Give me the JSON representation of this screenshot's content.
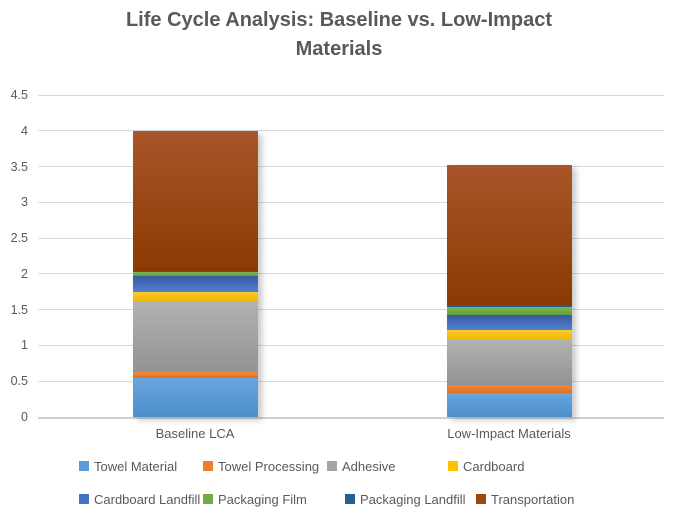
{
  "chart_data": {
    "type": "bar",
    "stacked": true,
    "title": "Life Cycle Analysis: Baseline vs. Low-Impact Materials",
    "title_lines": [
      "Life Cycle Analysis: Baseline vs. Low-Impact",
      "Materials"
    ],
    "categories": [
      "Baseline LCA",
      "Low-Impact Materials"
    ],
    "series": [
      {
        "name": "Towel Material",
        "color": "#5B9BD5",
        "gradient": [
          "#6AA6DE",
          "#4C8DCB"
        ],
        "values": [
          0.55,
          0.33
        ]
      },
      {
        "name": "Towel Processing",
        "color": "#ED7D31",
        "gradient": [
          "#F08A42",
          "#E06F1F"
        ],
        "values": [
          0.08,
          0.11
        ]
      },
      {
        "name": "Adhesive",
        "color": "#A5A5A5",
        "gradient": [
          "#B2B2B2",
          "#929292"
        ],
        "values": [
          0.97,
          0.63
        ]
      },
      {
        "name": "Cardboard",
        "color": "#FFC000",
        "gradient": [
          "#FFCA28",
          "#EEB400"
        ],
        "values": [
          0.15,
          0.14
        ]
      },
      {
        "name": "Cardboard Landfill",
        "color": "#4472C4",
        "gradient": [
          "#375A9F",
          "#5181D5"
        ],
        "values": [
          0.22,
          0.21
        ]
      },
      {
        "name": "Packaging Film",
        "color": "#70AD47",
        "gradient": [
          "#7BB754",
          "#61A039"
        ],
        "values": [
          0.05,
          0.12
        ]
      },
      {
        "name": "Packaging Landfill",
        "color": "#255E91",
        "gradient": [
          "#255E91",
          "#255E91"
        ],
        "values": [
          0.02,
          0.02
        ]
      },
      {
        "name": "Transportation",
        "color": "#9E480E",
        "gradient": [
          "#A8562A",
          "#8C3A02"
        ],
        "values": [
          1.96,
          1.96
        ]
      }
    ],
    "totals": [
      4.0,
      3.52
    ],
    "ylim": [
      0,
      4.5
    ],
    "ytick_step": 0.5,
    "yticks": [
      "0",
      "0.5",
      "1",
      "1.5",
      "2",
      "2.5",
      "3",
      "3.5",
      "4",
      "4.5"
    ],
    "grid": true,
    "legend_position": "bottom",
    "legend_rows": [
      [
        "Towel Material",
        "Towel Processing",
        "Adhesive",
        "Cardboard"
      ],
      [
        "Cardboard Landfill",
        "Packaging Film",
        "Packaging Landfill",
        "Transportation"
      ]
    ]
  },
  "colors": {
    "title_text": "#595959",
    "axis_text": "#595959",
    "gridline": "#D9D9D9",
    "axis_line": "#D0D0D0",
    "background": "#FFFFFF"
  }
}
